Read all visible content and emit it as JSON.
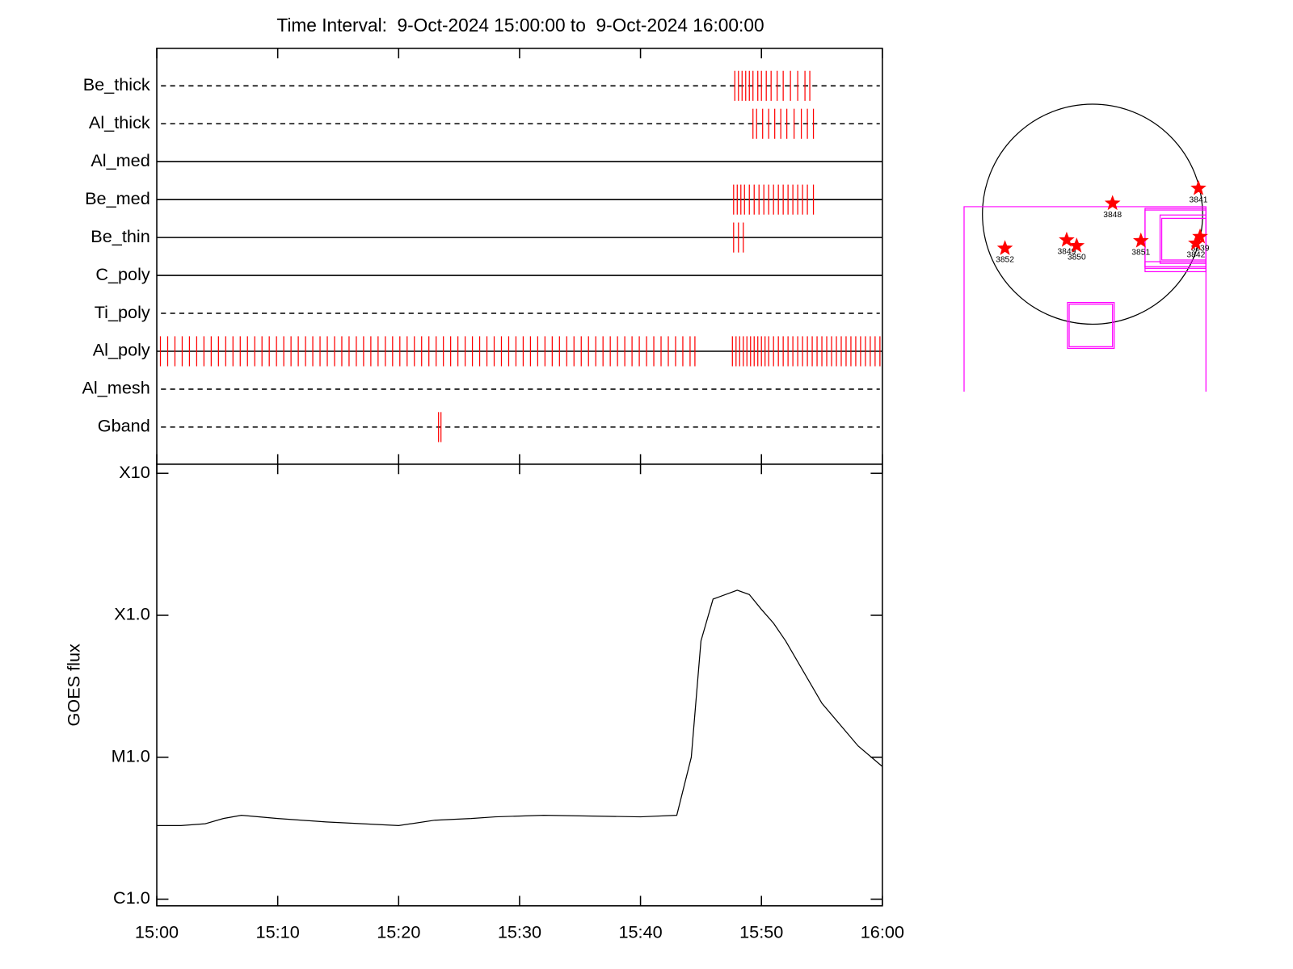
{
  "chart_data": [
    {
      "type": "event",
      "title": "Time Interval:  9-Oct-2024 15:00:00 to  9-Oct-2024 16:00:00",
      "xlim": [
        0,
        60
      ],
      "xticks": [
        0,
        10,
        20,
        30,
        40,
        50,
        60
      ],
      "event_color": "#ff0000",
      "line_color": "#000000",
      "channels": [
        {
          "name": "Be_thick",
          "line_style": "dashed",
          "events": [
            47.8,
            48.1,
            48.4,
            48.7,
            49.0,
            49.3,
            49.7,
            50.0,
            50.4,
            50.8,
            51.3,
            51.8,
            52.4,
            53.0,
            53.6,
            54.0
          ]
        },
        {
          "name": "Al_thick",
          "line_style": "dashed",
          "events": [
            49.3,
            49.6,
            50.1,
            50.6,
            51.1,
            51.6,
            52.1,
            52.7,
            53.3,
            53.8,
            54.3
          ]
        },
        {
          "name": "Al_med",
          "line_style": "solid",
          "events": []
        },
        {
          "name": "Be_med",
          "line_style": "solid",
          "events": [
            47.7,
            48.0,
            48.3,
            48.6,
            49.0,
            49.4,
            49.8,
            50.2,
            50.6,
            51.0,
            51.4,
            51.8,
            52.2,
            52.6,
            53.0,
            53.4,
            53.8,
            54.3
          ]
        },
        {
          "name": "Be_thin",
          "line_style": "solid",
          "events": [
            47.7,
            48.1,
            48.5
          ]
        },
        {
          "name": "C_poly",
          "line_style": "solid",
          "events": []
        },
        {
          "name": "Ti_poly",
          "line_style": "dashed",
          "events": []
        },
        {
          "name": "Al_poly",
          "line_style": "solid",
          "events": [
            0.3,
            0.9,
            1.5,
            2.1,
            2.7,
            3.3,
            3.9,
            4.5,
            5.1,
            5.7,
            6.3,
            6.9,
            7.5,
            8.1,
            8.7,
            9.3,
            9.9,
            10.5,
            11.1,
            11.7,
            12.3,
            12.9,
            13.5,
            14.1,
            14.7,
            15.3,
            15.9,
            16.5,
            17.1,
            17.7,
            18.3,
            18.9,
            19.5,
            20.1,
            20.7,
            21.3,
            21.9,
            22.5,
            23.1,
            23.7,
            24.3,
            24.9,
            25.5,
            26.1,
            26.7,
            27.3,
            27.9,
            28.5,
            29.1,
            29.7,
            30.3,
            30.9,
            31.5,
            32.1,
            32.7,
            33.3,
            33.9,
            34.5,
            35.1,
            35.7,
            36.3,
            36.9,
            37.5,
            38.1,
            38.7,
            39.3,
            39.9,
            40.5,
            41.1,
            41.7,
            42.3,
            42.9,
            43.5,
            44.1,
            44.5,
            47.6,
            47.9,
            48.2,
            48.5,
            48.8,
            49.1,
            49.4,
            49.7,
            50.0,
            50.3,
            50.6,
            51.0,
            51.4,
            51.8,
            52.2,
            52.6,
            53.0,
            53.4,
            53.8,
            54.2,
            54.6,
            55.0,
            55.4,
            55.8,
            56.2,
            56.6,
            57.0,
            57.4,
            57.8,
            58.2,
            58.6,
            59.0,
            59.4,
            59.8
          ]
        },
        {
          "name": "Al_mesh",
          "line_style": "dashed",
          "events": []
        },
        {
          "name": "Gband",
          "line_style": "dashed",
          "events": [
            23.3,
            23.5
          ]
        }
      ]
    },
    {
      "type": "line",
      "y_label": "GOES flux",
      "log_scale": true,
      "color": "#000000",
      "x": [
        0,
        2,
        4,
        5.5,
        7,
        10,
        14,
        20,
        23,
        26,
        28,
        32,
        40,
        43,
        44.2,
        45,
        46,
        48,
        49,
        50,
        51,
        52,
        55,
        58,
        60
      ],
      "values": [
        3.3e-06,
        3.3e-06,
        3.4e-06,
        3.7e-06,
        3.9e-06,
        3.7e-06,
        3.5e-06,
        3.3e-06,
        3.6e-06,
        3.7e-06,
        3.8e-06,
        3.9e-06,
        3.8e-06,
        3.9e-06,
        1e-05,
        6.6e-05,
        0.00013,
        0.00015,
        0.00014,
        0.00011,
        8.8e-05,
        6.6e-05,
        2.4e-05,
        1.2e-05,
        8.6e-06
      ],
      "xlim": [
        0,
        60
      ],
      "xticks": [
        {
          "value": 0,
          "label": "15:00"
        },
        {
          "value": 10,
          "label": "15:10"
        },
        {
          "value": 20,
          "label": "15:20"
        },
        {
          "value": 30,
          "label": "15:30"
        },
        {
          "value": 40,
          "label": "15:40"
        },
        {
          "value": 50,
          "label": "15:50"
        },
        {
          "value": 60,
          "label": "16:00"
        }
      ],
      "ylim": [
        1e-06,
        0.001
      ],
      "yticks": [
        {
          "value": 1e-06,
          "label": "C1.0"
        },
        {
          "value": 1e-05,
          "label": "M1.0"
        },
        {
          "value": 0.0001,
          "label": "X1.0"
        },
        {
          "value": 0.001,
          "label": "X10"
        }
      ]
    },
    {
      "type": "map",
      "disk_color": "#000000",
      "region_color": "#ff00ff",
      "marker_color": "#ff0000",
      "regions": [
        "3841",
        "3848",
        "3849",
        "3850",
        "3851",
        "3852",
        "3839",
        "3842"
      ]
    }
  ]
}
